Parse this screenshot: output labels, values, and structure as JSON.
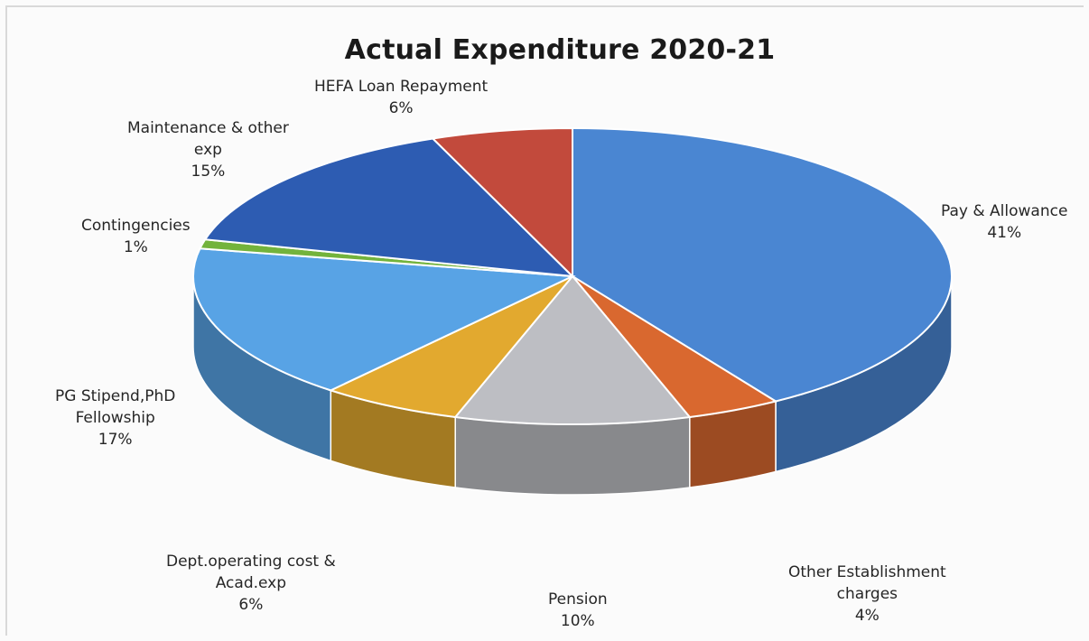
{
  "chart_data": {
    "type": "pie",
    "title": "Actual Expenditure 2020-21",
    "slices": [
      {
        "label_lines": [
          "Pay & Allowance"
        ],
        "value": 41,
        "pct_label": "41%",
        "color": "#4A86D2"
      },
      {
        "label_lines": [
          "Other Establishment",
          "charges"
        ],
        "value": 4,
        "pct_label": "4%",
        "color": "#D9682F"
      },
      {
        "label_lines": [
          "Pension"
        ],
        "value": 10,
        "pct_label": "10%",
        "color": "#BDBEC3"
      },
      {
        "label_lines": [
          "Dept.operating cost &",
          "Acad.exp"
        ],
        "value": 6,
        "pct_label": "6%",
        "color": "#E2A92F"
      },
      {
        "label_lines": [
          "PG Stipend,PhD",
          "Fellowship"
        ],
        "value": 17,
        "pct_label": "17%",
        "color": "#58A3E5"
      },
      {
        "label_lines": [
          "Contingencies"
        ],
        "value": 1,
        "pct_label": "1%",
        "color": "#73B33C"
      },
      {
        "label_lines": [
          "Maintenance & other",
          "exp"
        ],
        "value": 15,
        "pct_label": "15%",
        "color": "#2D5CB2"
      },
      {
        "label_lines": [
          "HEFA Loan Repayment"
        ],
        "value": 6,
        "pct_label": "6%",
        "color": "#C24A3C"
      }
    ]
  }
}
